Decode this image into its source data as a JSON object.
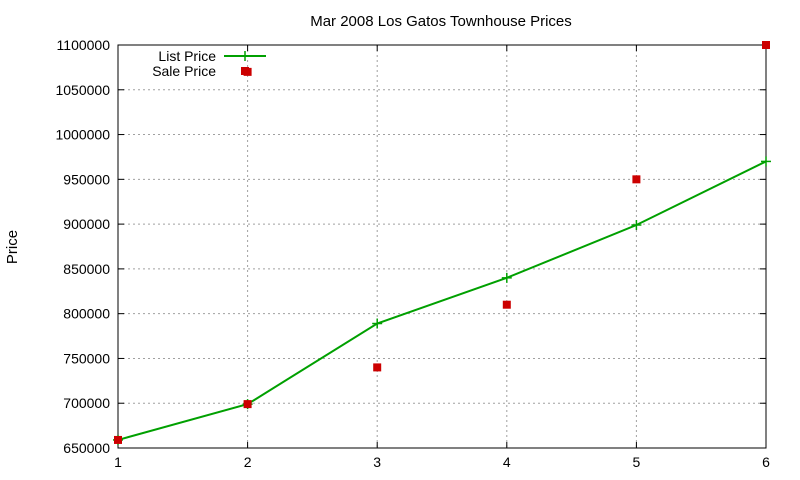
{
  "chart_data": {
    "type": "line",
    "title": "Mar 2008 Los Gatos Townhouse Prices",
    "xlabel": "",
    "ylabel": "Price",
    "x": [
      1,
      2,
      3,
      4,
      5,
      6
    ],
    "xlim": [
      1,
      6
    ],
    "ylim": [
      650000,
      1100000
    ],
    "xticks": [
      1,
      2,
      3,
      4,
      5,
      6
    ],
    "yticks": [
      650000,
      700000,
      750000,
      800000,
      850000,
      900000,
      950000,
      1000000,
      1050000,
      1100000
    ],
    "grid": true,
    "legend_position": "top-left",
    "series": [
      {
        "name": "List Price",
        "style": "line-plus",
        "color": "#00a000",
        "values": [
          659000,
          699000,
          789000,
          840000,
          899000,
          970000
        ]
      },
      {
        "name": "Sale Price",
        "style": "square-points",
        "color": "#cc0000",
        "values": [
          659000,
          699000,
          740000,
          810000,
          950000,
          1100000
        ]
      }
    ]
  },
  "extra_points": [
    {
      "series": "Sale Price",
      "x": 2,
      "y": 1070000
    }
  ]
}
